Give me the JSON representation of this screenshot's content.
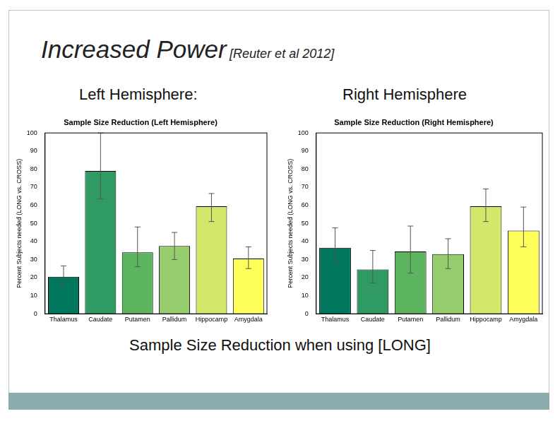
{
  "slide": {
    "title": "Increased Power",
    "citation": "[Reuter et al 2012]",
    "caption": "Sample Size Reduction when using [LONG]"
  },
  "chart_data": [
    {
      "type": "bar",
      "heading": "Left Hemisphere:",
      "title": "Sample Size Reduction (Left Hemisphere)",
      "y_label": "Percent Subjects needed (LONG vs. CROSS)",
      "categories": [
        "Thalamus",
        "Caudate",
        "Putamen",
        "Pallidum",
        "Hippocamp",
        "Amygdala"
      ],
      "values": [
        20.5,
        79,
        34,
        37.5,
        59.5,
        30.5
      ],
      "error_low": [
        16,
        63.5,
        26,
        30,
        51,
        25
      ],
      "error_high": [
        26.5,
        100,
        48,
        45,
        66.5,
        37
      ],
      "colors": [
        "#00775e",
        "#2f9a62",
        "#5db45e",
        "#96cd6c",
        "#d1e86a",
        "#ffff5c"
      ],
      "ylim": [
        0,
        100
      ],
      "yticks": [
        0,
        10,
        20,
        30,
        40,
        50,
        60,
        70,
        80,
        90,
        100
      ],
      "grid": false
    },
    {
      "type": "bar",
      "heading": "Right Hemisphere",
      "title": "Sample Size Reduction (Right Hemisphere)",
      "y_label": "Percent Subjects needed (LONG vs. CROSS)",
      "categories": [
        "Thalamus",
        "Caudate",
        "Putamen",
        "Pallidum",
        "Hippocamp",
        "Amygdala"
      ],
      "values": [
        36.5,
        24.5,
        34.5,
        33,
        59.5,
        46
      ],
      "error_low": [
        28.5,
        17,
        22.5,
        25,
        51,
        37
      ],
      "error_high": [
        47.5,
        35,
        48.5,
        41.5,
        69,
        59
      ],
      "colors": [
        "#00775e",
        "#2f9a62",
        "#5db45e",
        "#96cd6c",
        "#d1e86a",
        "#ffff5c"
      ],
      "ylim": [
        0,
        100
      ],
      "yticks": [
        0,
        10,
        20,
        30,
        40,
        50,
        60,
        70,
        80,
        90,
        100
      ],
      "grid": false
    }
  ]
}
